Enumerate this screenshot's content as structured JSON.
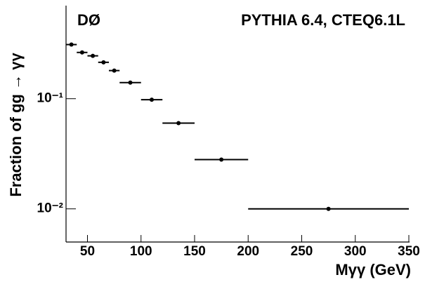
{
  "chart_data": {
    "type": "histogram",
    "label_left": "DØ",
    "label_right": "PYTHIA 6.4, CTEQ6.1L",
    "x_label": "Mγγ (GeV)",
    "y_label": "Fraction of gg → γγ",
    "bins": [
      30,
      40,
      50,
      60,
      70,
      80,
      100,
      120,
      150,
      200,
      350
    ],
    "values": [
      0.31,
      0.263,
      0.245,
      0.214,
      0.18,
      0.14,
      0.098,
      0.06,
      0.028,
      0.01
    ],
    "color": "#000000",
    "xlim": [
      30,
      350
    ],
    "xticks": [
      50,
      100,
      150,
      200,
      250,
      300,
      350
    ],
    "ylim": [
      0.005,
      0.7
    ],
    "yscale": "log",
    "yticks": [
      {
        "value": 0.1,
        "label": "10⁻¹"
      },
      {
        "value": 0.01,
        "label": "10⁻²"
      }
    ]
  }
}
